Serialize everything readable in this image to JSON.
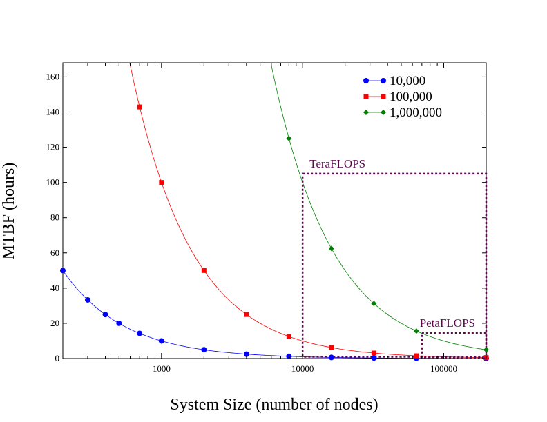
{
  "chart_data": {
    "type": "line",
    "xlabel": "System Size (number of nodes)",
    "ylabel": "MTBF (hours)",
    "x_scale": "log",
    "xlim": [
      200,
      200000
    ],
    "ylim": [
      0,
      168
    ],
    "x_ticks": [
      1000,
      10000,
      100000
    ],
    "x_tick_labels": [
      "1000",
      "10000",
      "100000"
    ],
    "y_ticks": [
      0,
      20,
      40,
      60,
      80,
      100,
      120,
      140,
      160
    ],
    "y_tick_labels": [
      "0",
      "20",
      "40",
      "60",
      "80",
      "100",
      "120",
      "140",
      "160"
    ],
    "legend_position": "top-right",
    "series": [
      {
        "name": "10,000",
        "color": "#0000ff",
        "marker": "circle",
        "x": [
          200,
          300,
          400,
          500,
          700,
          1000,
          2000,
          4000,
          8000,
          16000,
          32000,
          64000,
          200000
        ],
        "y": [
          50,
          33.3,
          25,
          20,
          14.3,
          10,
          5,
          2.5,
          1.25,
          0.63,
          0.31,
          0.16,
          0.05
        ]
      },
      {
        "name": "100,000",
        "color": "#ff0000",
        "marker": "square",
        "x": [
          700,
          1000,
          2000,
          4000,
          8000,
          16000,
          32000,
          64000,
          200000
        ],
        "y": [
          142.9,
          100,
          50,
          25,
          12.5,
          6.25,
          3.13,
          1.56,
          0.5
        ],
        "curve_from_x": 500
      },
      {
        "name": "1,000,000",
        "color": "#008000",
        "marker": "diamond",
        "x": [
          8000,
          16000,
          32000,
          64000,
          200000
        ],
        "y": [
          125,
          62.5,
          31.25,
          15.6,
          5
        ],
        "curve_from_x": 5000
      }
    ],
    "regions": [
      {
        "label": "TeraFLOPS",
        "x": [
          10000,
          200000
        ],
        "y": [
          1,
          105
        ]
      },
      {
        "label": "PetaFLOPS",
        "x": [
          70000,
          200000
        ],
        "y": [
          0.5,
          14.5
        ]
      }
    ],
    "region_color": "#5a0a4e"
  }
}
